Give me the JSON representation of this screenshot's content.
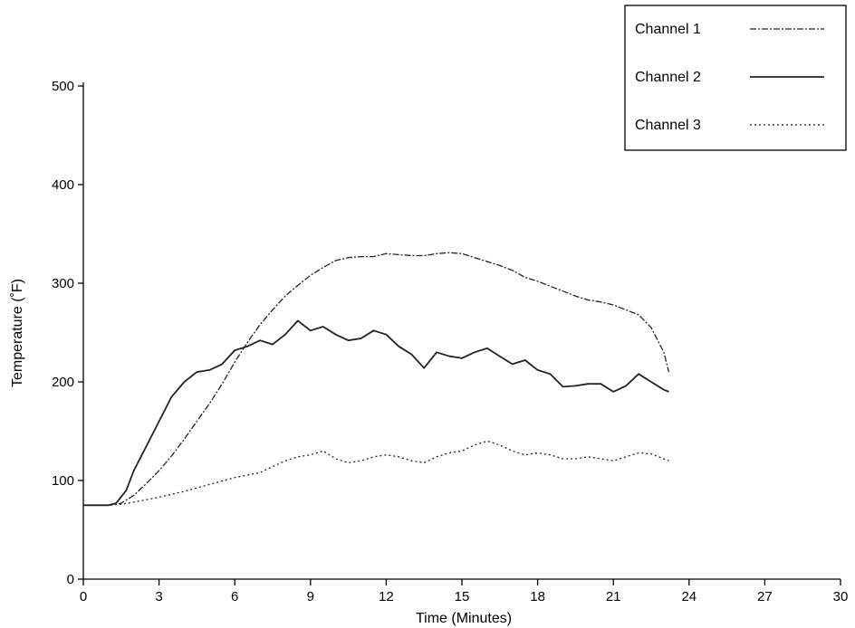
{
  "chart_data": {
    "type": "line",
    "title": "",
    "xlabel": "Time (Minutes)",
    "ylabel": "Temperature (˚F)",
    "xlim": [
      0,
      30
    ],
    "ylim": [
      0,
      500
    ],
    "xticks": [
      0,
      3,
      6,
      9,
      12,
      15,
      18,
      21,
      24,
      27,
      30
    ],
    "yticks": [
      0,
      100,
      200,
      300,
      400,
      500
    ],
    "x_tick_labels": [
      "0",
      "3",
      "6",
      "9",
      "12",
      "15",
      "18",
      "21",
      "24",
      "27",
      "30"
    ],
    "y_tick_labels": [
      "0",
      "100",
      "200",
      "300",
      "400",
      "500"
    ],
    "grid": false,
    "legend_position": "top-right",
    "series": [
      {
        "name": "Channel 1",
        "color": "#222222",
        "style": "dash-dot",
        "x": [
          0,
          1,
          1.5,
          2,
          2.5,
          3,
          3.5,
          4,
          4.5,
          5,
          5.5,
          6,
          6.5,
          7,
          7.5,
          8,
          8.5,
          9,
          9.5,
          10,
          10.5,
          11,
          11.5,
          12,
          12.5,
          13,
          13.5,
          14,
          14.5,
          15,
          15.5,
          16,
          16.5,
          17,
          17.5,
          18,
          18.5,
          19,
          19.5,
          20,
          20.5,
          21,
          21.5,
          22,
          22.5,
          23,
          23.2
        ],
        "y": [
          75,
          75,
          77,
          85,
          97,
          110,
          125,
          142,
          160,
          178,
          198,
          220,
          240,
          258,
          273,
          287,
          298,
          308,
          316,
          323,
          326,
          327,
          327,
          330,
          329,
          328,
          328,
          330,
          331,
          330,
          326,
          322,
          318,
          313,
          306,
          302,
          297,
          292,
          287,
          283,
          281,
          278,
          273,
          268,
          255,
          230,
          210
        ]
      },
      {
        "name": "Channel 2",
        "color": "#222222",
        "style": "solid",
        "x": [
          0,
          1,
          1.3,
          1.7,
          2,
          2.5,
          3,
          3.5,
          4,
          4.5,
          5,
          5.5,
          6,
          6.5,
          7,
          7.5,
          8,
          8.5,
          9,
          9.5,
          10,
          10.5,
          11,
          11.5,
          12,
          12.5,
          13,
          13.5,
          14,
          14.5,
          15,
          15.5,
          16,
          16.5,
          17,
          17.5,
          18,
          18.5,
          19,
          19.5,
          20,
          20.5,
          21,
          21.5,
          22,
          22.5,
          23,
          23.2
        ],
        "y": [
          75,
          75,
          77,
          90,
          110,
          135,
          160,
          185,
          200,
          210,
          212,
          218,
          232,
          236,
          242,
          238,
          248,
          262,
          252,
          256,
          248,
          242,
          244,
          252,
          248,
          236,
          228,
          214,
          230,
          226,
          224,
          230,
          234,
          226,
          218,
          222,
          212,
          208,
          195,
          196,
          198,
          198,
          190,
          196,
          208,
          200,
          192,
          190
        ]
      },
      {
        "name": "Channel 3",
        "color": "#222222",
        "style": "dotted",
        "x": [
          0,
          1,
          1.5,
          2,
          3,
          4,
          5,
          6,
          7,
          7.5,
          8,
          8.5,
          9,
          9.5,
          10,
          10.5,
          11,
          11.5,
          12,
          12.5,
          13,
          13.5,
          14,
          14.5,
          15,
          15.5,
          16,
          16.5,
          17,
          17.5,
          18,
          18.5,
          19,
          19.5,
          20,
          20.5,
          21,
          21.5,
          22,
          22.5,
          23,
          23.2
        ],
        "y": [
          75,
          75,
          76,
          78,
          83,
          89,
          96,
          103,
          108,
          114,
          120,
          124,
          126,
          130,
          122,
          118,
          120,
          124,
          126,
          124,
          120,
          118,
          124,
          128,
          130,
          136,
          140,
          136,
          130,
          126,
          128,
          126,
          122,
          122,
          124,
          122,
          120,
          124,
          128,
          127,
          122,
          120
        ]
      }
    ]
  }
}
